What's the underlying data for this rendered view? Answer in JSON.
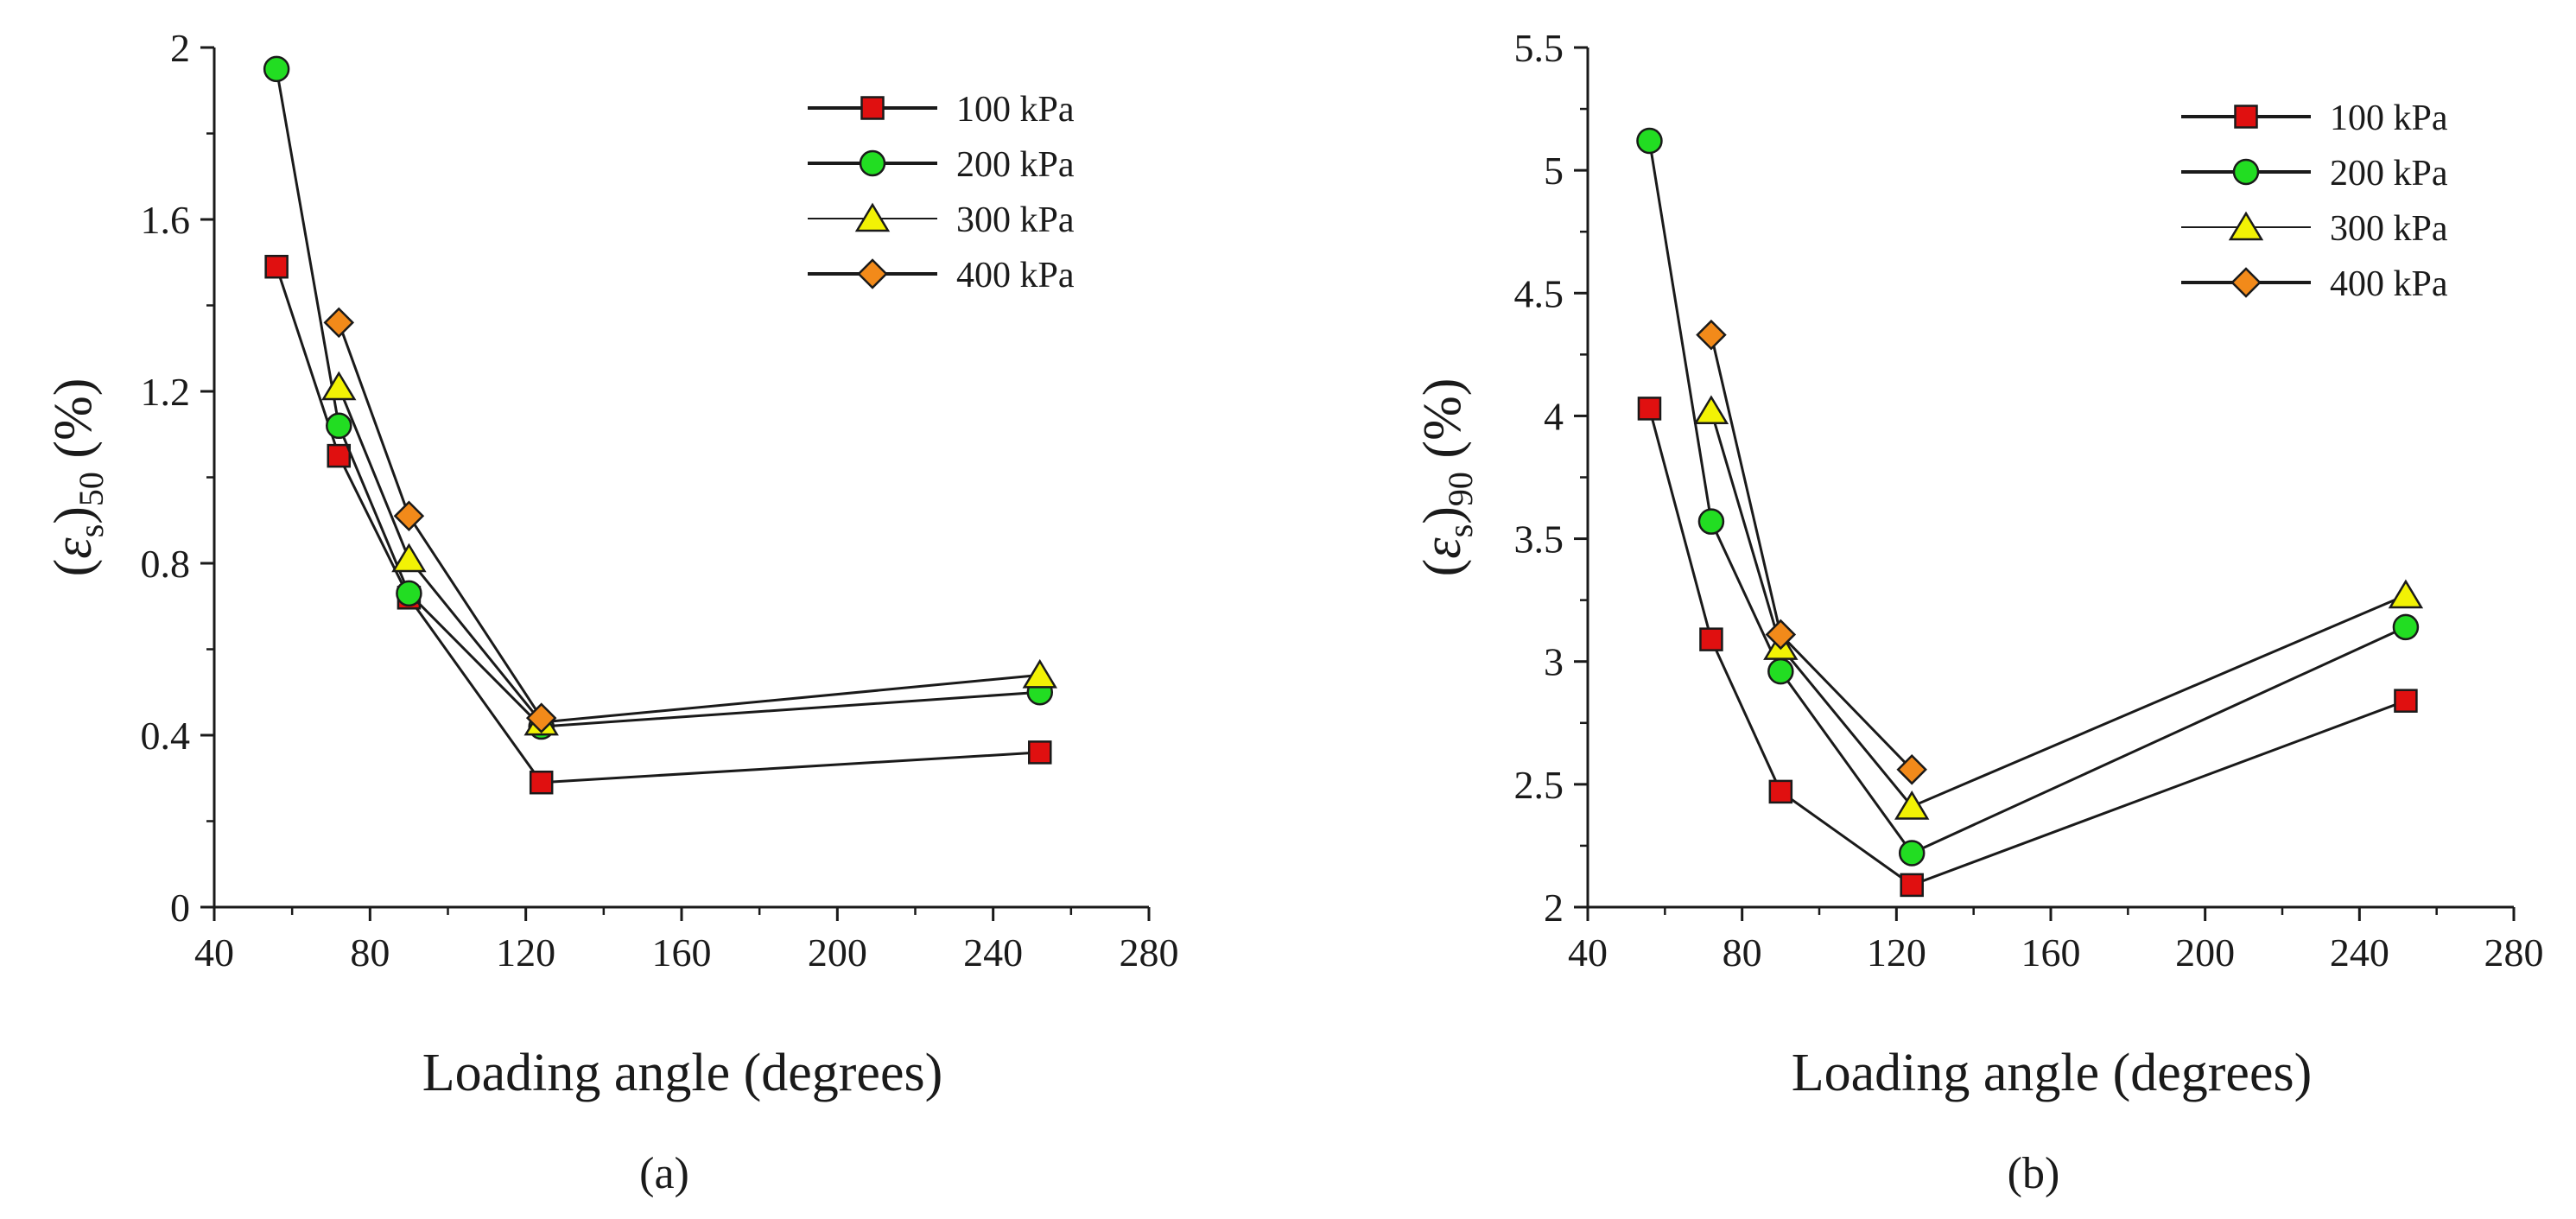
{
  "chart_data": [
    {
      "type": "line",
      "panel_label": "(a)",
      "xlabel": "Loading angle (degrees)",
      "ylabel": {
        "prefix": "(",
        "epsilon": "ε",
        "sub_s": "s",
        "close": ")",
        "sub_n": "50",
        "unit": " (%)"
      },
      "xlim": [
        40,
        280
      ],
      "ylim": [
        0,
        2
      ],
      "xticks": [
        40,
        80,
        120,
        160,
        200,
        240,
        280
      ],
      "yticks": [
        0,
        0.4,
        0.8,
        1.2,
        1.6,
        2
      ],
      "ytick_labels": [
        "0",
        "0.4",
        "0.8",
        "1.2",
        "1.6",
        "2"
      ],
      "legend_position": "top-right",
      "series": [
        {
          "name": "100 kPa",
          "marker": "square",
          "color": "#e01010",
          "x": [
            56,
            72,
            90,
            124,
            252
          ],
          "y": [
            1.49,
            1.05,
            0.72,
            0.29,
            0.36
          ]
        },
        {
          "name": "200 kPa",
          "marker": "circle",
          "color": "#22dd22",
          "x": [
            56,
            72,
            90,
            124,
            252
          ],
          "y": [
            1.95,
            1.12,
            0.73,
            0.42,
            0.5
          ]
        },
        {
          "name": "300 kPa",
          "marker": "triangle",
          "color": "#f2f205",
          "x": [
            72,
            90,
            124,
            252
          ],
          "y": [
            1.21,
            0.81,
            0.43,
            0.54
          ]
        },
        {
          "name": "400 kPa",
          "marker": "diamond",
          "color": "#f28a1a",
          "x": [
            72,
            90,
            124
          ],
          "y": [
            1.36,
            0.91,
            0.44
          ]
        }
      ]
    },
    {
      "type": "line",
      "panel_label": "(b)",
      "xlabel": "Loading angle (degrees)",
      "ylabel": {
        "prefix": "(",
        "epsilon": "ε",
        "sub_s": "s",
        "close": ")",
        "sub_n": "90",
        "unit": " (%)"
      },
      "xlim": [
        40,
        280
      ],
      "ylim": [
        2,
        5.5
      ],
      "xticks": [
        40,
        80,
        120,
        160,
        200,
        240,
        280
      ],
      "yticks": [
        2,
        2.5,
        3,
        3.5,
        4,
        4.5,
        5,
        5.5
      ],
      "ytick_labels": [
        "2",
        "2.5",
        "3",
        "3.5",
        "4",
        "4.5",
        "5",
        "5.5"
      ],
      "legend_position": "top-right",
      "series": [
        {
          "name": "100 kPa",
          "marker": "square",
          "color": "#e01010",
          "x": [
            56,
            72,
            90,
            124,
            252
          ],
          "y": [
            4.03,
            3.09,
            2.47,
            2.09,
            2.84
          ]
        },
        {
          "name": "200 kPa",
          "marker": "circle",
          "color": "#22dd22",
          "x": [
            56,
            72,
            90,
            124,
            252
          ],
          "y": [
            5.12,
            3.57,
            2.96,
            2.22,
            3.14
          ]
        },
        {
          "name": "300 kPa",
          "marker": "triangle",
          "color": "#f2f205",
          "x": [
            72,
            90,
            124,
            252
          ],
          "y": [
            4.02,
            3.06,
            2.41,
            3.27
          ]
        },
        {
          "name": "400 kPa",
          "marker": "diamond",
          "color": "#f28a1a",
          "x": [
            72,
            90,
            124
          ],
          "y": [
            4.33,
            3.11,
            2.56
          ]
        }
      ]
    }
  ]
}
